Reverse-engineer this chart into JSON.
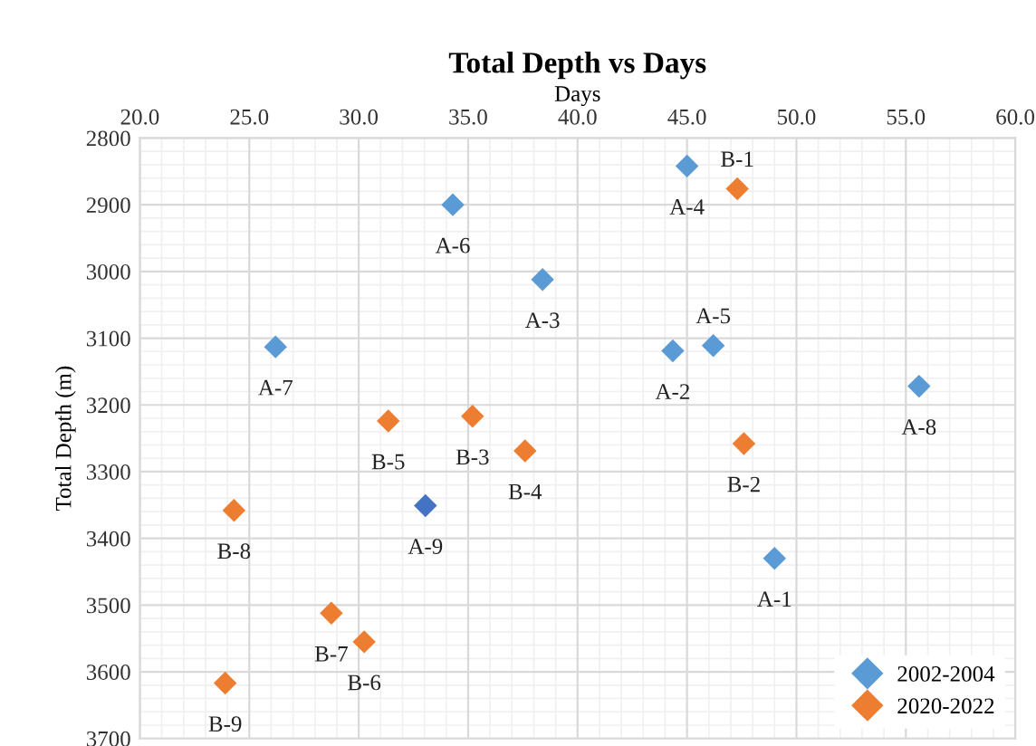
{
  "chart_data": {
    "type": "scatter",
    "title": "Total Depth vs Days",
    "xlabel": "Days",
    "ylabel": "Total Depth (m)",
    "xlim": [
      20,
      60
    ],
    "ylim": [
      3700,
      2800
    ],
    "xticks": [
      {
        "value": 20,
        "label": "20.0"
      },
      {
        "value": 25,
        "label": "25.0"
      },
      {
        "value": 30,
        "label": "30.0"
      },
      {
        "value": 35,
        "label": "35.0"
      },
      {
        "value": 40,
        "label": "40.0"
      },
      {
        "value": 45,
        "label": "45.0"
      },
      {
        "value": 50,
        "label": "50.0"
      },
      {
        "value": 55,
        "label": "55.0"
      },
      {
        "value": 60,
        "label": "60.0"
      }
    ],
    "yticks": [
      2800,
      2900,
      3000,
      3100,
      3200,
      3300,
      3400,
      3500,
      3600,
      3700
    ],
    "grid": true,
    "legend": "bottom right",
    "marker": "diamond",
    "series": [
      {
        "name": "2002-2004",
        "color": "#5b9bd5",
        "x": [
          49.0,
          44.35,
          38.4,
          45.0,
          46.2,
          34.3,
          26.2,
          55.6,
          33.05
        ],
        "values": [
          3430,
          3119,
          3012,
          2842,
          3111,
          2900,
          3113,
          3172,
          3351
        ],
        "colors": [
          "#5b9bd5",
          "#5b9bd5",
          "#5b9bd5",
          "#5b9bd5",
          "#5b9bd5",
          "#5b9bd5",
          "#5b9bd5",
          "#5b9bd5",
          "#4472c4"
        ]
      },
      {
        "name": "2020-2022",
        "color": "#ed7d31",
        "x": [
          47.3,
          47.6,
          35.2,
          37.6,
          31.35,
          30.25,
          28.75,
          24.3,
          23.9
        ],
        "values": [
          2876,
          3258,
          3217,
          3269,
          3224,
          3555,
          3512,
          3358,
          3617
        ]
      }
    ],
    "annotations": [
      {
        "text": "A-1",
        "x": 49.0,
        "y": 3430
      },
      {
        "text": "A-2",
        "x": 44.35,
        "y": 3119
      },
      {
        "text": "A-3",
        "x": 38.4,
        "y": 3012
      },
      {
        "text": "A-4",
        "x": 45.0,
        "y": 2842
      },
      {
        "text": "A-5",
        "x": 46.2,
        "y": 3111
      },
      {
        "text": "A-6",
        "x": 34.3,
        "y": 2900
      },
      {
        "text": "A-7",
        "x": 26.2,
        "y": 3113
      },
      {
        "text": "A-8",
        "x": 55.6,
        "y": 3172
      },
      {
        "text": "A-9",
        "x": 33.05,
        "y": 3351
      },
      {
        "text": "B-1",
        "x": 47.3,
        "y": 2876
      },
      {
        "text": "B-2",
        "x": 47.6,
        "y": 3258
      },
      {
        "text": "B-3",
        "x": 35.2,
        "y": 3217
      },
      {
        "text": "B-4",
        "x": 37.6,
        "y": 3269
      },
      {
        "text": "B-5",
        "x": 31.35,
        "y": 3224
      },
      {
        "text": "B-6",
        "x": 30.25,
        "y": 3555
      },
      {
        "text": "B-7",
        "x": 28.75,
        "y": 3512
      },
      {
        "text": "B-8",
        "x": 24.3,
        "y": 3358
      },
      {
        "text": "B-9",
        "x": 23.9,
        "y": 3617
      }
    ]
  }
}
